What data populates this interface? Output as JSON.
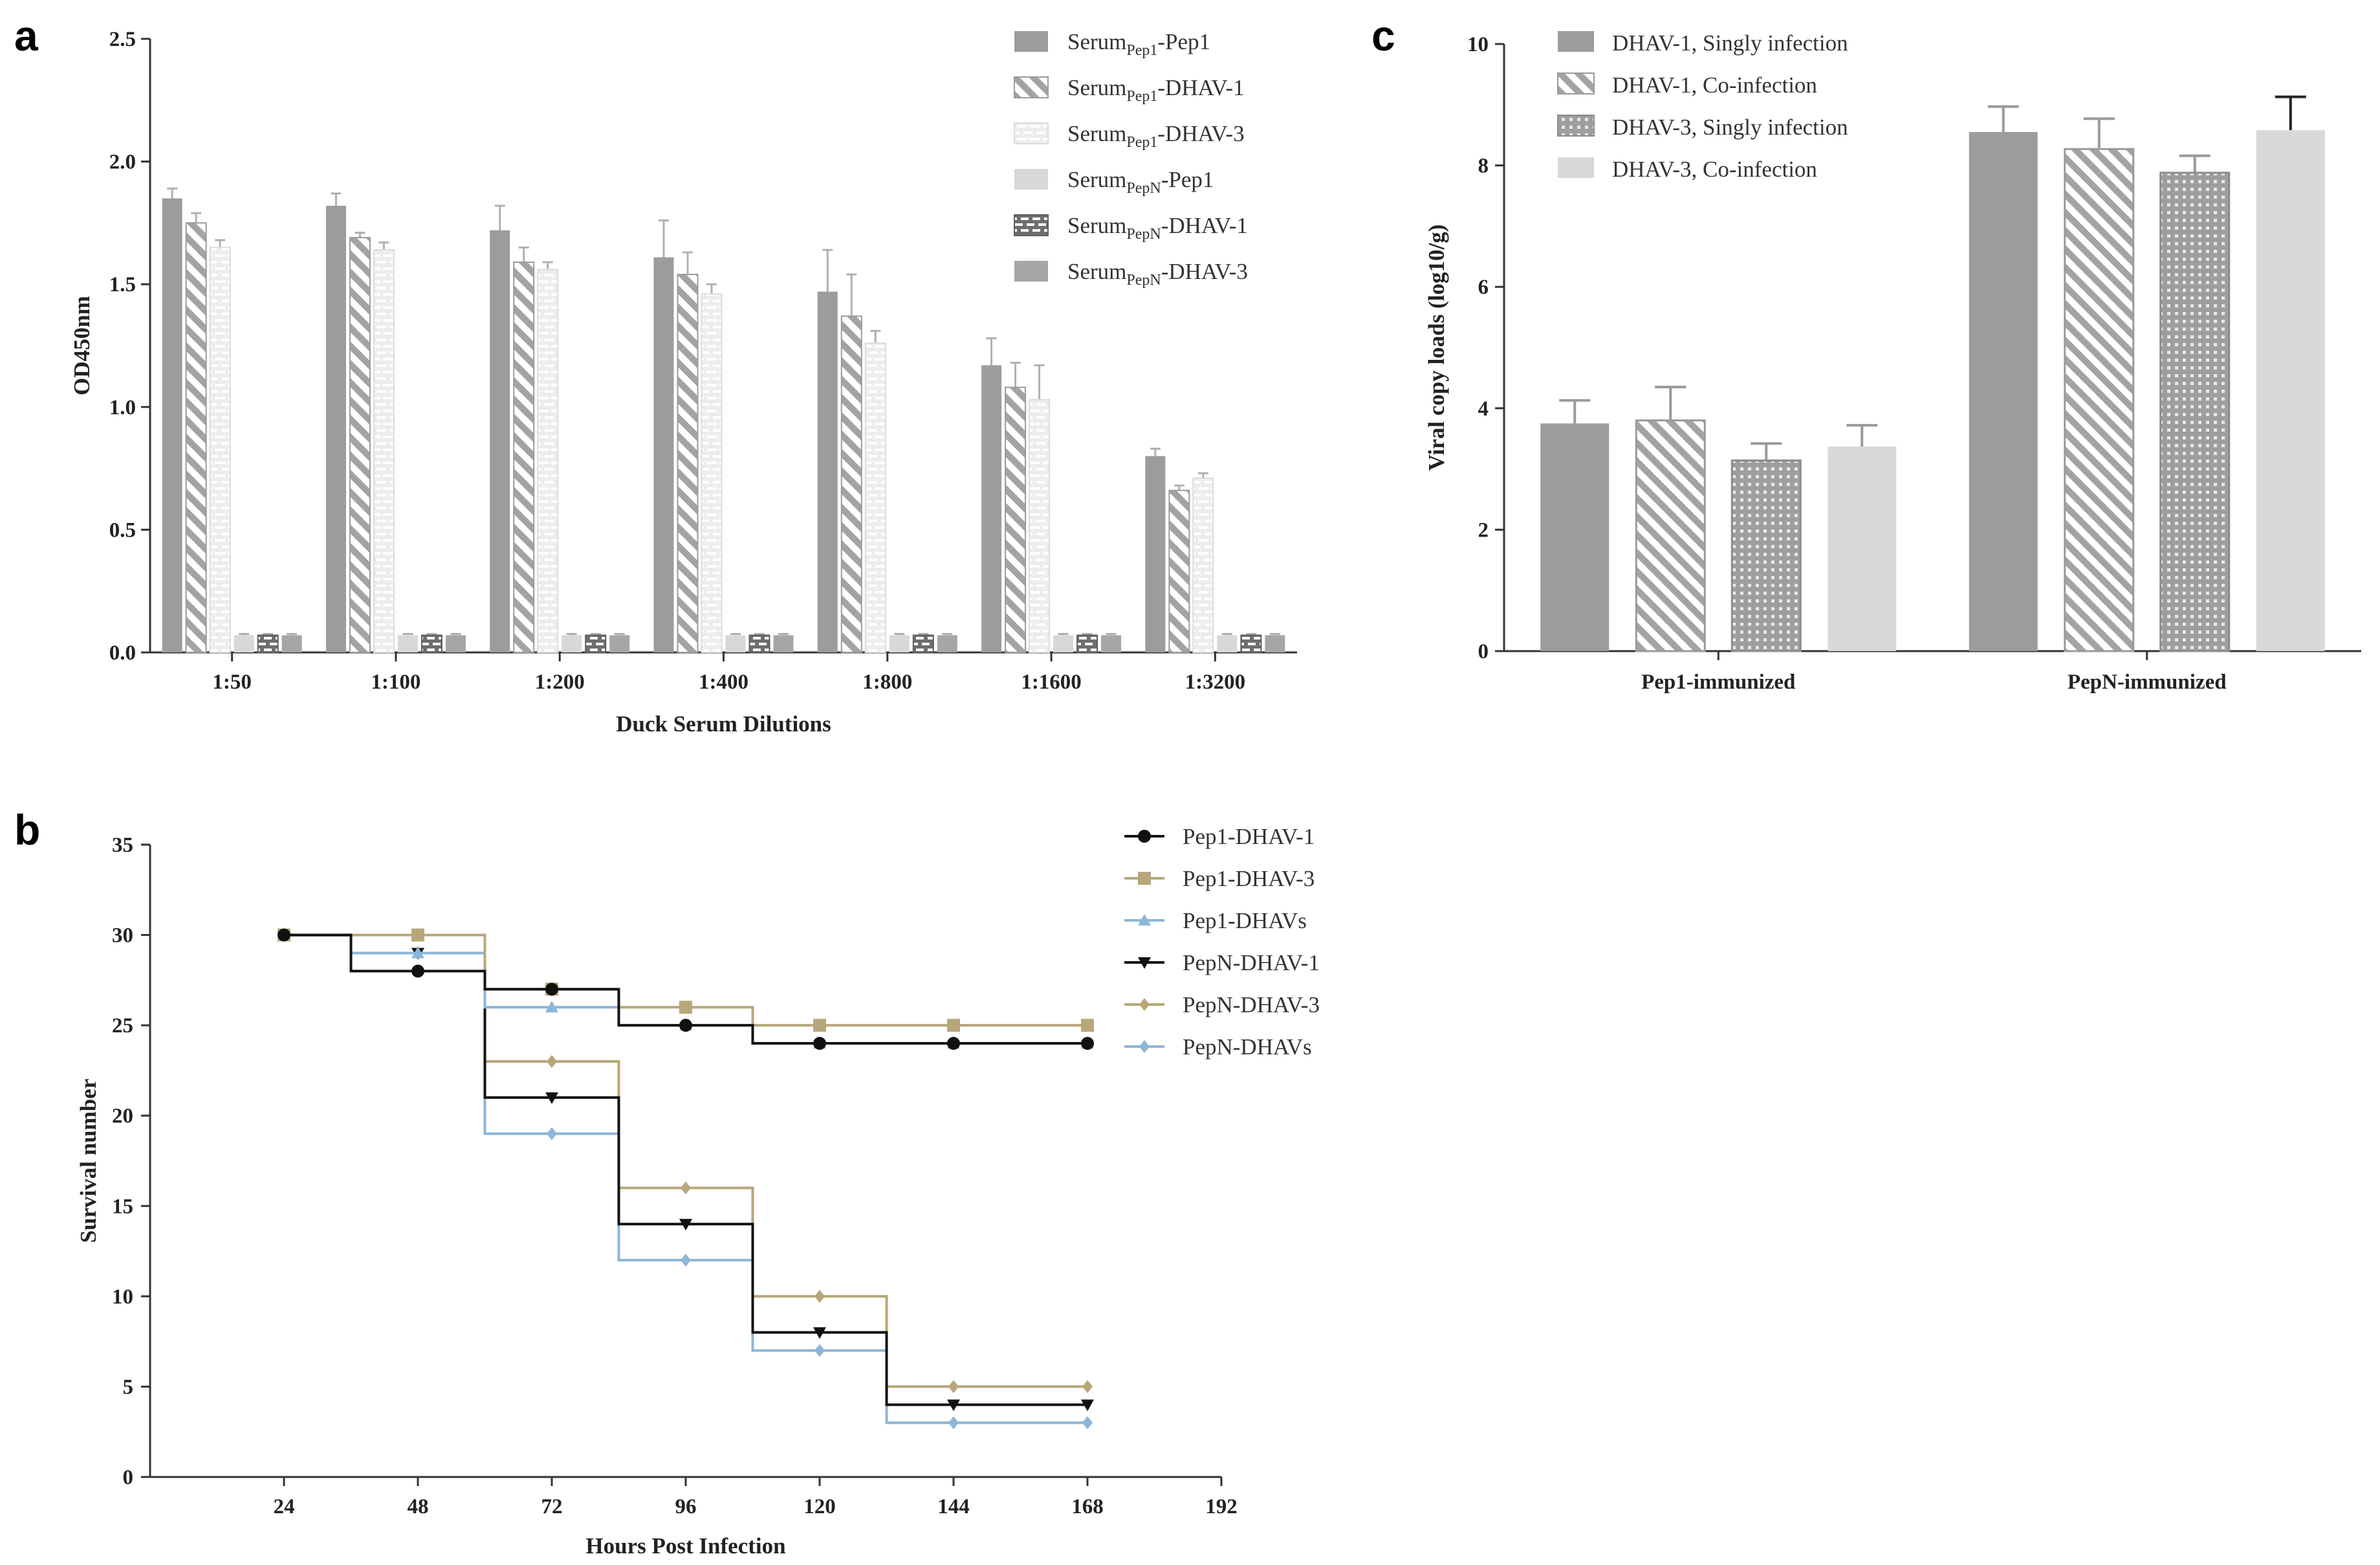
{
  "panels": {
    "a": {
      "letter": "a",
      "chart_data": {
        "type": "bar",
        "title": "",
        "xlabel": "Duck Serum Dilutions",
        "ylabel": "OD450nm",
        "ylim": [
          0,
          2.5
        ],
        "yticks": [
          "0.0",
          "0.5",
          "1.0",
          "1.5",
          "2.0",
          "2.5"
        ],
        "categories": [
          "1:50",
          "1:100",
          "1:200",
          "1:400",
          "1:800",
          "1:1600",
          "1:3200"
        ],
        "legend_position": "top-right",
        "series": [
          {
            "name": "Serum",
            "sub": "Pep1",
            "suffix": "-Pep1",
            "pattern": "solid-dark",
            "values": [
              1.85,
              1.82,
              1.72,
              1.61,
              1.47,
              1.17,
              0.8
            ],
            "errors": [
              0.04,
              0.05,
              0.1,
              0.15,
              0.17,
              0.11,
              0.03
            ]
          },
          {
            "name": "Serum",
            "sub": "Pep1",
            "suffix": "-DHAV-1",
            "pattern": "diag-stripe",
            "values": [
              1.75,
              1.69,
              1.59,
              1.54,
              1.37,
              1.08,
              0.66
            ],
            "errors": [
              0.04,
              0.02,
              0.06,
              0.09,
              0.17,
              0.1,
              0.02
            ]
          },
          {
            "name": "Serum",
            "sub": "Pep1",
            "suffix": "-DHAV-3",
            "pattern": "light-dash",
            "values": [
              1.65,
              1.64,
              1.56,
              1.46,
              1.26,
              1.03,
              0.71
            ],
            "errors": [
              0.03,
              0.03,
              0.03,
              0.04,
              0.05,
              0.14,
              0.02
            ]
          },
          {
            "name": "Serum",
            "sub": "PepN",
            "suffix": "-Pep1",
            "pattern": "solid-light",
            "values": [
              0.07,
              0.07,
              0.07,
              0.07,
              0.07,
              0.07,
              0.07
            ],
            "errors": [
              0.005,
              0.005,
              0.005,
              0.005,
              0.005,
              0.005,
              0.005
            ]
          },
          {
            "name": "Serum",
            "sub": "PepN",
            "suffix": "-DHAV-1",
            "pattern": "dark-brick",
            "values": [
              0.07,
              0.07,
              0.07,
              0.07,
              0.07,
              0.07,
              0.07
            ],
            "errors": [
              0.005,
              0.005,
              0.005,
              0.005,
              0.005,
              0.005,
              0.005
            ]
          },
          {
            "name": "Serum",
            "sub": "PepN",
            "suffix": "-DHAV-3",
            "pattern": "solid-mid",
            "values": [
              0.07,
              0.07,
              0.07,
              0.07,
              0.07,
              0.07,
              0.07
            ],
            "errors": [
              0.005,
              0.005,
              0.005,
              0.005,
              0.005,
              0.005,
              0.005
            ]
          }
        ]
      }
    },
    "b": {
      "letter": "b",
      "chart_data": {
        "type": "line",
        "step": true,
        "title": "",
        "xlabel": "Hours Post Infection",
        "ylabel": "Survival number",
        "xlim": [
          0,
          192
        ],
        "ylim": [
          0,
          35
        ],
        "xticks": [
          "24",
          "48",
          "72",
          "96",
          "120",
          "144",
          "168",
          "192"
        ],
        "yticks": [
          "0",
          "5",
          "10",
          "15",
          "20",
          "25",
          "30",
          "35"
        ],
        "legend_position": "top-right",
        "x": [
          24,
          48,
          72,
          96,
          120,
          144,
          168
        ],
        "series": [
          {
            "name": "Pep1-DHAV-1",
            "color": "#111111",
            "marker": "circle",
            "values": [
              30,
              28,
              27,
              25,
              24,
              24,
              24
            ]
          },
          {
            "name": "Pep1-DHAV-3",
            "color": "#b7a77a",
            "marker": "square",
            "values": [
              30,
              30,
              27,
              26,
              25,
              25,
              25
            ]
          },
          {
            "name": "Pep1-DHAVs",
            "color": "#8db6d8",
            "marker": "triangle-up",
            "values": [
              30,
              29,
              26,
              25,
              24,
              24,
              24
            ]
          },
          {
            "name": "PepN-DHAV-1",
            "color": "#111111",
            "marker": "triangle-down",
            "values": [
              30,
              29,
              21,
              14,
              8,
              4,
              4
            ]
          },
          {
            "name": "PepN-DHAV-3",
            "color": "#b7a77a",
            "marker": "diamond",
            "values": [
              30,
              29,
              23,
              16,
              10,
              5,
              5
            ]
          },
          {
            "name": "PepN-DHAVs",
            "color": "#8db6d8",
            "marker": "diamond",
            "values": [
              30,
              29,
              19,
              12,
              7,
              3,
              3
            ]
          }
        ]
      }
    },
    "c": {
      "letter": "c",
      "chart_data": {
        "type": "bar",
        "title": "",
        "xlabel": "",
        "ylabel": "Viral copy loads (log10/g)",
        "ylim": [
          0,
          10
        ],
        "yticks": [
          "0",
          "2",
          "4",
          "6",
          "8",
          "10"
        ],
        "categories": [
          "Pep1-immunized",
          "PepN-immunized"
        ],
        "legend_position": "top-left",
        "series": [
          {
            "name": "DHAV-1, Singly infection",
            "pattern": "solid-dark",
            "values": [
              3.75,
              8.55
            ],
            "errors": [
              0.38,
              0.42
            ]
          },
          {
            "name": "DHAV-1, Co-infection",
            "pattern": "diag-stripe",
            "values": [
              3.8,
              8.27
            ],
            "errors": [
              0.55,
              0.5
            ]
          },
          {
            "name": "DHAV-3, Singly infection",
            "pattern": "dot-grid",
            "values": [
              3.14,
              7.88
            ],
            "errors": [
              0.28,
              0.28
            ]
          },
          {
            "name": "DHAV-3, Co-infection",
            "pattern": "solid-light",
            "values": [
              3.37,
              8.58
            ],
            "errors": [
              0.35,
              0.55
            ]
          }
        ]
      }
    }
  }
}
